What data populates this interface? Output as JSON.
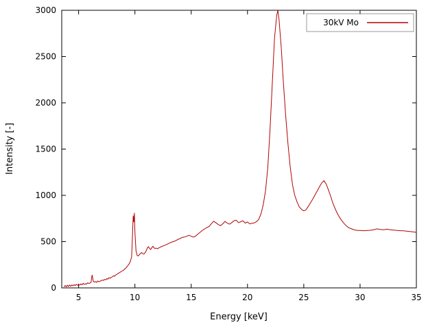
{
  "chart_data": {
    "type": "line",
    "title": "",
    "xlabel": "Energy [keV]",
    "ylabel": "Intensity [-]",
    "xlim": [
      3.5,
      35
    ],
    "ylim": [
      0,
      3000
    ],
    "x_ticks": [
      5,
      10,
      15,
      20,
      25,
      30,
      35
    ],
    "y_ticks": [
      0,
      500,
      1000,
      1500,
      2000,
      2500,
      3000
    ],
    "grid": false,
    "legend_position": "top-right",
    "axis_color": "#000000",
    "series": [
      {
        "name": "30kV Mo",
        "color": "#b00000",
        "points": [
          [
            3.7,
            10
          ],
          [
            3.8,
            25
          ],
          [
            3.9,
            12
          ],
          [
            4.0,
            28
          ],
          [
            4.1,
            15
          ],
          [
            4.2,
            30
          ],
          [
            4.3,
            18
          ],
          [
            4.4,
            32
          ],
          [
            4.5,
            22
          ],
          [
            4.6,
            35
          ],
          [
            4.7,
            25
          ],
          [
            4.8,
            38
          ],
          [
            4.9,
            28
          ],
          [
            5.0,
            35
          ],
          [
            5.1,
            30
          ],
          [
            5.2,
            42
          ],
          [
            5.3,
            33
          ],
          [
            5.4,
            48
          ],
          [
            5.5,
            38
          ],
          [
            5.6,
            45
          ],
          [
            5.7,
            40
          ],
          [
            5.8,
            55
          ],
          [
            5.9,
            48
          ],
          [
            6.0,
            52
          ],
          [
            6.1,
            60
          ],
          [
            6.2,
            140
          ],
          [
            6.3,
            70
          ],
          [
            6.4,
            62
          ],
          [
            6.5,
            68
          ],
          [
            6.6,
            60
          ],
          [
            6.7,
            75
          ],
          [
            6.8,
            66
          ],
          [
            6.9,
            72
          ],
          [
            7.0,
            78
          ],
          [
            7.1,
            85
          ],
          [
            7.2,
            80
          ],
          [
            7.3,
            92
          ],
          [
            7.4,
            86
          ],
          [
            7.5,
            100
          ],
          [
            7.6,
            95
          ],
          [
            7.7,
            110
          ],
          [
            7.8,
            104
          ],
          [
            7.9,
            115
          ],
          [
            8.0,
            120
          ],
          [
            8.1,
            130
          ],
          [
            8.2,
            126
          ],
          [
            8.3,
            140
          ],
          [
            8.4,
            146
          ],
          [
            8.5,
            155
          ],
          [
            8.6,
            162
          ],
          [
            8.7,
            170
          ],
          [
            8.8,
            178
          ],
          [
            8.9,
            185
          ],
          [
            9.0,
            192
          ],
          [
            9.1,
            205
          ],
          [
            9.2,
            215
          ],
          [
            9.3,
            230
          ],
          [
            9.4,
            245
          ],
          [
            9.5,
            262
          ],
          [
            9.6,
            290
          ],
          [
            9.7,
            330
          ],
          [
            9.75,
            460
          ],
          [
            9.8,
            620
          ],
          [
            9.85,
            780
          ],
          [
            9.9,
            710
          ],
          [
            9.95,
            810
          ],
          [
            10.0,
            600
          ],
          [
            10.1,
            400
          ],
          [
            10.2,
            350
          ],
          [
            10.3,
            345
          ],
          [
            10.4,
            360
          ],
          [
            10.5,
            372
          ],
          [
            10.6,
            382
          ],
          [
            10.7,
            370
          ],
          [
            10.8,
            365
          ],
          [
            10.9,
            380
          ],
          [
            11.0,
            400
          ],
          [
            11.1,
            430
          ],
          [
            11.2,
            445
          ],
          [
            11.3,
            425
          ],
          [
            11.4,
            415
          ],
          [
            11.5,
            435
          ],
          [
            11.6,
            450
          ],
          [
            11.7,
            432
          ],
          [
            11.8,
            425
          ],
          [
            11.9,
            430
          ],
          [
            12.0,
            422
          ],
          [
            12.2,
            438
          ],
          [
            12.4,
            448
          ],
          [
            12.6,
            458
          ],
          [
            12.8,
            468
          ],
          [
            13.0,
            480
          ],
          [
            13.2,
            492
          ],
          [
            13.4,
            500
          ],
          [
            13.6,
            508
          ],
          [
            13.8,
            522
          ],
          [
            14.0,
            532
          ],
          [
            14.2,
            545
          ],
          [
            14.4,
            550
          ],
          [
            14.6,
            558
          ],
          [
            14.8,
            568
          ],
          [
            15.0,
            558
          ],
          [
            15.2,
            548
          ],
          [
            15.4,
            560
          ],
          [
            15.6,
            582
          ],
          [
            15.8,
            602
          ],
          [
            16.0,
            622
          ],
          [
            16.2,
            638
          ],
          [
            16.4,
            652
          ],
          [
            16.6,
            665
          ],
          [
            16.8,
            695
          ],
          [
            17.0,
            720
          ],
          [
            17.2,
            702
          ],
          [
            17.4,
            685
          ],
          [
            17.6,
            672
          ],
          [
            17.8,
            692
          ],
          [
            18.0,
            718
          ],
          [
            18.2,
            700
          ],
          [
            18.4,
            688
          ],
          [
            18.6,
            705
          ],
          [
            18.8,
            725
          ],
          [
            19.0,
            732
          ],
          [
            19.2,
            705
          ],
          [
            19.4,
            715
          ],
          [
            19.6,
            725
          ],
          [
            19.8,
            700
          ],
          [
            20.0,
            712
          ],
          [
            20.2,
            692
          ],
          [
            20.4,
            698
          ],
          [
            20.6,
            702
          ],
          [
            20.8,
            715
          ],
          [
            21.0,
            740
          ],
          [
            21.2,
            800
          ],
          [
            21.4,
            900
          ],
          [
            21.6,
            1050
          ],
          [
            21.8,
            1300
          ],
          [
            22.0,
            1700
          ],
          [
            22.2,
            2200
          ],
          [
            22.4,
            2700
          ],
          [
            22.6,
            2950
          ],
          [
            22.7,
            3000
          ],
          [
            22.8,
            2900
          ],
          [
            23.0,
            2600
          ],
          [
            23.2,
            2200
          ],
          [
            23.4,
            1850
          ],
          [
            23.6,
            1550
          ],
          [
            23.8,
            1300
          ],
          [
            24.0,
            1110
          ],
          [
            24.2,
            1000
          ],
          [
            24.4,
            930
          ],
          [
            24.6,
            875
          ],
          [
            24.8,
            848
          ],
          [
            25.0,
            832
          ],
          [
            25.2,
            845
          ],
          [
            25.4,
            880
          ],
          [
            25.6,
            920
          ],
          [
            25.8,
            960
          ],
          [
            26.0,
            1005
          ],
          [
            26.2,
            1050
          ],
          [
            26.4,
            1095
          ],
          [
            26.6,
            1135
          ],
          [
            26.8,
            1158
          ],
          [
            27.0,
            1120
          ],
          [
            27.2,
            1055
          ],
          [
            27.4,
            985
          ],
          [
            27.6,
            910
          ],
          [
            27.8,
            852
          ],
          [
            28.0,
            800
          ],
          [
            28.2,
            758
          ],
          [
            28.4,
            722
          ],
          [
            28.6,
            692
          ],
          [
            28.8,
            668
          ],
          [
            29.0,
            650
          ],
          [
            29.2,
            640
          ],
          [
            29.4,
            630
          ],
          [
            29.6,
            624
          ],
          [
            29.8,
            620
          ],
          [
            30.0,
            620
          ],
          [
            30.3,
            618
          ],
          [
            30.6,
            620
          ],
          [
            30.9,
            622
          ],
          [
            31.2,
            628
          ],
          [
            31.5,
            638
          ],
          [
            31.8,
            632
          ],
          [
            32.1,
            628
          ],
          [
            32.4,
            634
          ],
          [
            32.7,
            628
          ],
          [
            33.0,
            624
          ],
          [
            33.3,
            620
          ],
          [
            33.6,
            618
          ],
          [
            33.9,
            616
          ],
          [
            34.2,
            612
          ],
          [
            34.5,
            608
          ],
          [
            34.8,
            604
          ],
          [
            35.0,
            600
          ]
        ]
      }
    ]
  }
}
